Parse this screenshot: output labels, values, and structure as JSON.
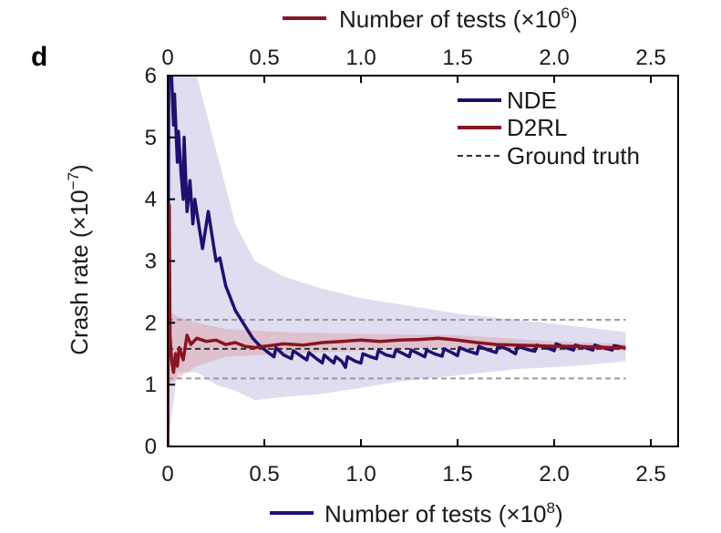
{
  "chart_data": {
    "type": "line",
    "panel_label": "d",
    "bottom_axis": {
      "label_prefix": "Number of tests (×10",
      "label_exp": "8",
      "label_suffix": ")",
      "range": [
        0,
        2.5
      ],
      "ticks": [
        "0",
        "0.5",
        "1.0",
        "1.5",
        "2.0",
        "2.5"
      ]
    },
    "top_axis": {
      "label_prefix": "Number of tests (×10",
      "label_exp": "6",
      "label_suffix": ")",
      "range": [
        0,
        2.5
      ],
      "ticks": [
        "0",
        "0.5",
        "1.0",
        "1.5",
        "2.0",
        "2.5"
      ]
    },
    "y_axis": {
      "label_prefix": "Crash rate  (×10",
      "label_exp": "−7",
      "label_suffix": ")",
      "range": [
        0,
        6
      ],
      "ticks": [
        "0",
        "1",
        "2",
        "3",
        "4",
        "5",
        "6"
      ]
    },
    "legend": {
      "position": "top-right",
      "items": [
        "NDE",
        "D2RL",
        "Ground truth"
      ]
    },
    "colors": {
      "nde": "#1f1070",
      "d2rl": "#8a1421",
      "ground_truth": "#333333",
      "confidence_gray": "#9a9a9a"
    },
    "ground_truth": 1.58,
    "ground_truth_band": [
      1.1,
      2.05
    ],
    "series": [
      {
        "name": "NDE",
        "axis": "bottom",
        "points": [
          [
            0,
            0
          ],
          [
            0.005,
            6.0
          ],
          [
            0.02,
            6.0
          ],
          [
            0.03,
            5.2
          ],
          [
            0.035,
            5.7
          ],
          [
            0.05,
            4.6
          ],
          [
            0.055,
            5.1
          ],
          [
            0.07,
            4.4
          ],
          [
            0.08,
            4.0
          ],
          [
            0.085,
            5.0
          ],
          [
            0.1,
            3.8
          ],
          [
            0.115,
            4.3
          ],
          [
            0.13,
            3.6
          ],
          [
            0.14,
            4.0
          ],
          [
            0.18,
            3.2
          ],
          [
            0.21,
            3.8
          ],
          [
            0.25,
            3.0
          ],
          [
            0.27,
            3.05
          ],
          [
            0.3,
            2.6
          ],
          [
            0.35,
            2.2
          ],
          [
            0.4,
            1.95
          ],
          [
            0.44,
            1.75
          ],
          [
            0.47,
            1.65
          ],
          [
            0.52,
            1.52
          ],
          [
            0.55,
            1.45
          ],
          [
            0.56,
            1.6
          ],
          [
            0.6,
            1.48
          ],
          [
            0.64,
            1.42
          ],
          [
            0.65,
            1.55
          ],
          [
            0.7,
            1.44
          ],
          [
            0.72,
            1.4
          ],
          [
            0.73,
            1.52
          ],
          [
            0.77,
            1.42
          ],
          [
            0.8,
            1.35
          ],
          [
            0.81,
            1.48
          ],
          [
            0.84,
            1.4
          ],
          [
            0.86,
            1.35
          ],
          [
            0.87,
            1.45
          ],
          [
            0.9,
            1.38
          ],
          [
            0.92,
            1.28
          ],
          [
            0.93,
            1.45
          ],
          [
            0.97,
            1.38
          ],
          [
            1.0,
            1.35
          ],
          [
            1.01,
            1.5
          ],
          [
            1.05,
            1.45
          ],
          [
            1.08,
            1.42
          ],
          [
            1.09,
            1.55
          ],
          [
            1.13,
            1.48
          ],
          [
            1.17,
            1.45
          ],
          [
            1.18,
            1.56
          ],
          [
            1.22,
            1.5
          ],
          [
            1.25,
            1.45
          ],
          [
            1.26,
            1.56
          ],
          [
            1.3,
            1.5
          ],
          [
            1.33,
            1.45
          ],
          [
            1.34,
            1.56
          ],
          [
            1.38,
            1.5
          ],
          [
            1.42,
            1.46
          ],
          [
            1.43,
            1.58
          ],
          [
            1.47,
            1.52
          ],
          [
            1.5,
            1.47
          ],
          [
            1.51,
            1.6
          ],
          [
            1.55,
            1.55
          ],
          [
            1.6,
            1.5
          ],
          [
            1.61,
            1.62
          ],
          [
            1.66,
            1.56
          ],
          [
            1.7,
            1.52
          ],
          [
            1.71,
            1.63
          ],
          [
            1.76,
            1.57
          ],
          [
            1.8,
            1.5
          ],
          [
            1.81,
            1.62
          ],
          [
            1.86,
            1.57
          ],
          [
            1.9,
            1.54
          ],
          [
            1.91,
            1.64
          ],
          [
            1.96,
            1.6
          ],
          [
            2.0,
            1.55
          ],
          [
            2.01,
            1.66
          ],
          [
            2.06,
            1.6
          ],
          [
            2.1,
            1.56
          ],
          [
            2.11,
            1.64
          ],
          [
            2.16,
            1.6
          ],
          [
            2.2,
            1.56
          ],
          [
            2.21,
            1.64
          ],
          [
            2.26,
            1.59
          ],
          [
            2.3,
            1.56
          ],
          [
            2.31,
            1.63
          ],
          [
            2.36,
            1.6
          ],
          [
            2.37,
            1.6
          ]
        ],
        "band_upper": [
          [
            0,
            6
          ],
          [
            0.05,
            6
          ],
          [
            0.15,
            6
          ],
          [
            0.25,
            4.8
          ],
          [
            0.35,
            3.6
          ],
          [
            0.45,
            3.0
          ],
          [
            0.6,
            2.75
          ],
          [
            0.8,
            2.55
          ],
          [
            1.0,
            2.4
          ],
          [
            1.2,
            2.3
          ],
          [
            1.5,
            2.15
          ],
          [
            1.8,
            2.05
          ],
          [
            2.1,
            1.95
          ],
          [
            2.37,
            1.85
          ]
        ],
        "band_lower": [
          [
            0,
            0
          ],
          [
            0.05,
            1.2
          ],
          [
            0.15,
            1.2
          ],
          [
            0.25,
            1.0
          ],
          [
            0.35,
            0.9
          ],
          [
            0.45,
            0.75
          ],
          [
            0.6,
            0.8
          ],
          [
            0.8,
            0.85
          ],
          [
            1.0,
            0.95
          ],
          [
            1.2,
            1.05
          ],
          [
            1.5,
            1.15
          ],
          [
            1.8,
            1.25
          ],
          [
            2.1,
            1.3
          ],
          [
            2.37,
            1.38
          ]
        ]
      },
      {
        "name": "D2RL",
        "axis": "top",
        "points": [
          [
            0,
            0
          ],
          [
            0.003,
            2.0
          ],
          [
            0.008,
            3.9
          ],
          [
            0.012,
            1.8
          ],
          [
            0.02,
            1.4
          ],
          [
            0.03,
            1.2
          ],
          [
            0.04,
            1.5
          ],
          [
            0.05,
            1.3
          ],
          [
            0.06,
            1.6
          ],
          [
            0.08,
            1.4
          ],
          [
            0.1,
            1.8
          ],
          [
            0.12,
            1.65
          ],
          [
            0.15,
            1.75
          ],
          [
            0.2,
            1.7
          ],
          [
            0.25,
            1.72
          ],
          [
            0.3,
            1.65
          ],
          [
            0.35,
            1.68
          ],
          [
            0.4,
            1.62
          ],
          [
            0.45,
            1.6
          ],
          [
            0.5,
            1.62
          ],
          [
            0.6,
            1.66
          ],
          [
            0.7,
            1.64
          ],
          [
            0.8,
            1.68
          ],
          [
            0.9,
            1.7
          ],
          [
            1.0,
            1.72
          ],
          [
            1.1,
            1.7
          ],
          [
            1.2,
            1.72
          ],
          [
            1.3,
            1.73
          ],
          [
            1.4,
            1.75
          ],
          [
            1.5,
            1.72
          ],
          [
            1.6,
            1.68
          ],
          [
            1.7,
            1.65
          ],
          [
            1.8,
            1.64
          ],
          [
            1.9,
            1.63
          ],
          [
            2.0,
            1.62
          ],
          [
            2.1,
            1.62
          ],
          [
            2.2,
            1.61
          ],
          [
            2.3,
            1.6
          ],
          [
            2.37,
            1.6
          ]
        ],
        "band_upper": [
          [
            0,
            2.2
          ],
          [
            0.05,
            2.1
          ],
          [
            0.15,
            2.0
          ],
          [
            0.3,
            1.9
          ],
          [
            0.6,
            1.85
          ],
          [
            1.0,
            1.82
          ],
          [
            1.5,
            1.8
          ],
          [
            2.0,
            1.7
          ],
          [
            2.37,
            1.66
          ]
        ],
        "band_lower": [
          [
            0,
            1.0
          ],
          [
            0.05,
            1.1
          ],
          [
            0.15,
            1.3
          ],
          [
            0.3,
            1.45
          ],
          [
            0.6,
            1.5
          ],
          [
            1.0,
            1.55
          ],
          [
            1.5,
            1.6
          ],
          [
            2.0,
            1.55
          ],
          [
            2.37,
            1.55
          ]
        ]
      }
    ]
  }
}
